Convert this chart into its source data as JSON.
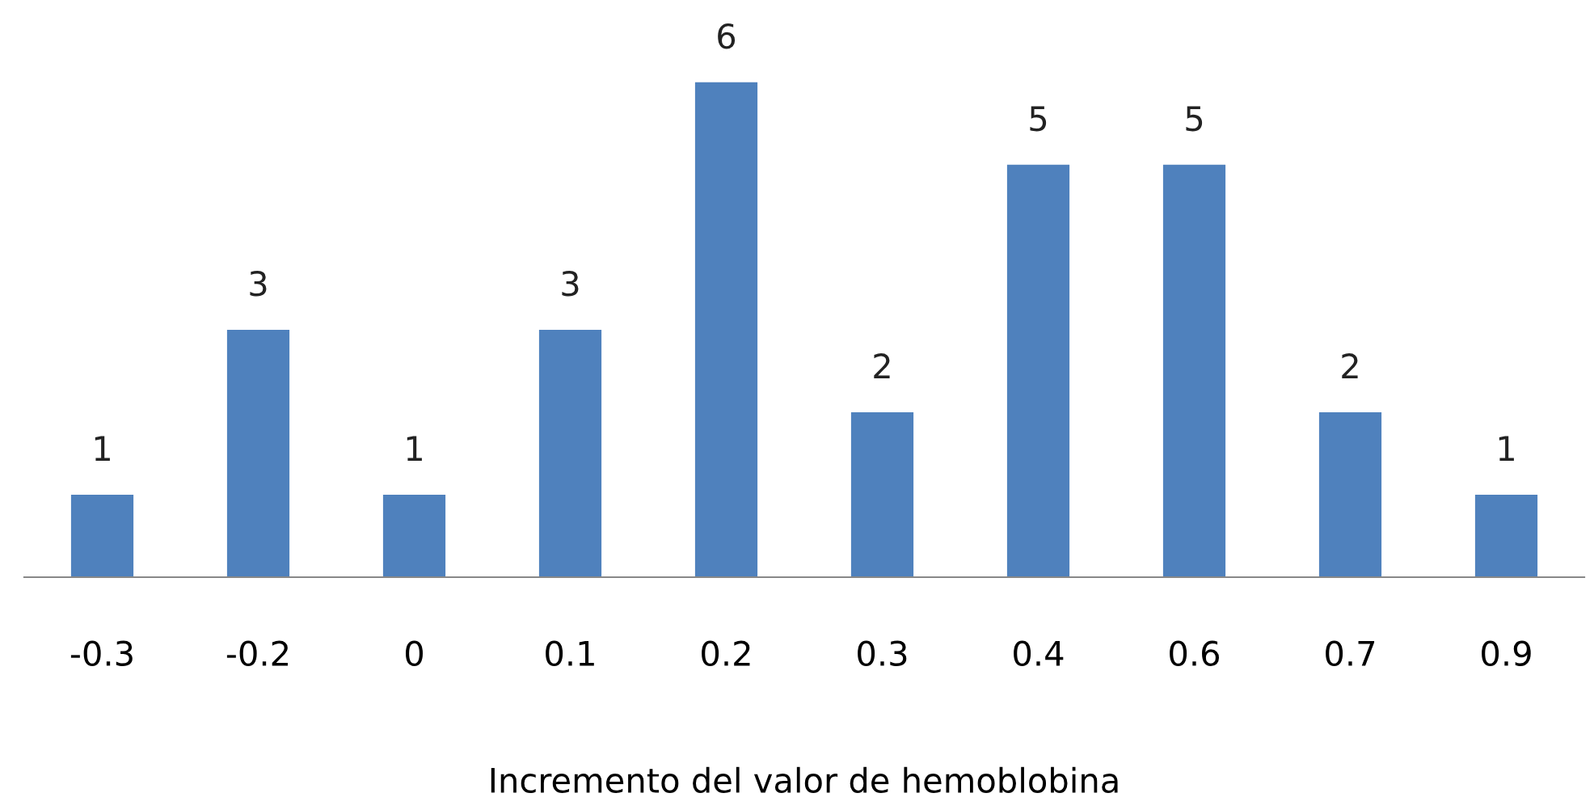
{
  "chart_data": {
    "type": "bar",
    "xlabel": "Incremento del valor de hemoblobina",
    "categories": [
      "-0.3",
      "-0.2",
      "0",
      "0.1",
      "0.2",
      "0.3",
      "0.4",
      "0.6",
      "0.7",
      "0.9"
    ],
    "values": [
      1,
      3,
      1,
      3,
      6,
      2,
      5,
      5,
      2,
      1
    ],
    "color": "#4f81bd",
    "data_labels": true,
    "grid": false,
    "legend": false
  }
}
